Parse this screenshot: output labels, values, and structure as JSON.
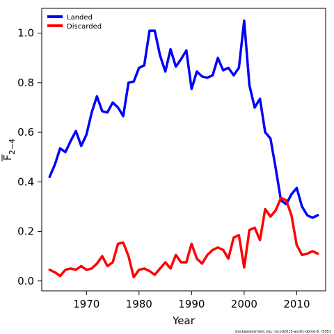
{
  "chart_data": {
    "type": "line",
    "xlabel": "Year",
    "ylabel_main": "F",
    "ylabel_sub": "2−4",
    "xlim": [
      1961.5,
      2015.5
    ],
    "ylim": [
      -0.04,
      1.1
    ],
    "x_ticks": [
      1970,
      1980,
      1990,
      2000,
      2010
    ],
    "y_ticks": [
      0.0,
      0.2,
      0.4,
      0.6,
      0.8,
      1.0
    ],
    "y_tick_labels": [
      "0.0",
      "0.2",
      "0.4",
      "0.6",
      "0.8",
      "1.0"
    ],
    "legend_position": "top-left",
    "x": [
      1963,
      1964,
      1965,
      1966,
      1967,
      1968,
      1969,
      1970,
      1971,
      1972,
      1973,
      1974,
      1975,
      1976,
      1977,
      1978,
      1979,
      1980,
      1981,
      1982,
      1983,
      1984,
      1985,
      1986,
      1987,
      1988,
      1989,
      1990,
      1991,
      1992,
      1993,
      1994,
      1995,
      1996,
      1997,
      1998,
      1999,
      2000,
      2001,
      2002,
      2003,
      2004,
      2005,
      2006,
      2007,
      2008,
      2009,
      2010,
      2011,
      2012,
      2013,
      2014
    ],
    "series": [
      {
        "name": "Landed",
        "color": "#0000ff",
        "values": [
          0.42,
          0.47,
          0.535,
          0.52,
          0.565,
          0.605,
          0.545,
          0.59,
          0.68,
          0.745,
          0.685,
          0.68,
          0.72,
          0.7,
          0.665,
          0.8,
          0.805,
          0.86,
          0.87,
          1.01,
          1.01,
          0.91,
          0.845,
          0.935,
          0.865,
          0.895,
          0.93,
          0.775,
          0.845,
          0.825,
          0.82,
          0.83,
          0.9,
          0.85,
          0.86,
          0.83,
          0.86,
          1.05,
          0.79,
          0.7,
          0.735,
          0.6,
          0.575,
          0.455,
          0.325,
          0.31,
          0.35,
          0.375,
          0.3,
          0.265,
          0.255,
          0.265
        ]
      },
      {
        "name": "Discarded",
        "color": "#ff0000",
        "values": [
          0.045,
          0.035,
          0.02,
          0.045,
          0.05,
          0.045,
          0.06,
          0.045,
          0.05,
          0.07,
          0.1,
          0.06,
          0.075,
          0.15,
          0.155,
          0.1,
          0.015,
          0.045,
          0.05,
          0.04,
          0.025,
          0.05,
          0.075,
          0.05,
          0.105,
          0.075,
          0.075,
          0.15,
          0.09,
          0.07,
          0.105,
          0.125,
          0.135,
          0.125,
          0.09,
          0.175,
          0.185,
          0.055,
          0.205,
          0.215,
          0.165,
          0.29,
          0.26,
          0.285,
          0.335,
          0.325,
          0.265,
          0.145,
          0.105,
          0.11,
          0.12,
          0.11
        ]
      }
    ]
  },
  "caption": "stockassessment.org, nscod2015-ass01-dome-8, r5051"
}
